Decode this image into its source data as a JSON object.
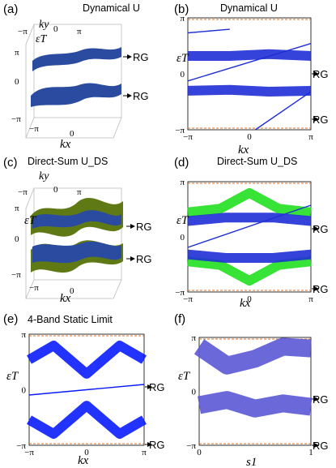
{
  "chart_data": [
    {
      "panel": "(a)",
      "type": "surface3d",
      "title": "Dynamical U",
      "xlabel": "kx",
      "ylabel": "ky",
      "zlabel": "εT",
      "x_ticks": [
        "−π",
        "0"
      ],
      "y_ticks": [
        "−π",
        "0",
        "π"
      ],
      "z_ticks": [
        "π",
        "0",
        "−π"
      ],
      "annotations": [
        "RG",
        "RG"
      ],
      "surface_color": "#2a4ba0"
    },
    {
      "panel": "(b)",
      "type": "line",
      "title": "Dynamical U",
      "xlabel": "kx",
      "ylabel": "εT",
      "x_ticks": [
        "−π",
        "0",
        "π"
      ],
      "y_ticks": [
        "π",
        "0",
        "−π"
      ],
      "annotations": [
        "RG",
        "RG"
      ],
      "series": [
        {
          "values": [
            [
              -3.14,
              1.0
            ],
            [
              -1.0,
              1.0
            ],
            [
              1.0,
              1.1
            ],
            [
              3.14,
              1.0
            ]
          ],
          "color": "#1f2fd6",
          "band": true
        },
        {
          "values": [
            [
              -3.14,
              -0.95
            ],
            [
              -1.0,
              -0.9
            ],
            [
              1.0,
              -1.0
            ],
            [
              3.14,
              -0.95
            ]
          ],
          "color": "#1f2fd6",
          "band": true
        },
        {
          "values": [
            [
              -3.14,
              2.3
            ],
            [
              -1.0,
              2.5
            ]
          ],
          "color": "#1f2fd6"
        },
        {
          "values": [
            [
              -3.14,
              -0.4
            ],
            [
              3.14,
              1.7
            ]
          ],
          "color": "#1f2fd6"
        },
        {
          "values": [
            [
              0.3,
              -3.14
            ],
            [
              3.14,
              -1.0
            ]
          ],
          "color": "#1f2fd6"
        }
      ],
      "ylim": [
        -3.14,
        3.14
      ],
      "xlim": [
        -3.14,
        3.14
      ]
    },
    {
      "panel": "(c)",
      "type": "surface3d",
      "title": "Direct-Sum U_DS",
      "xlabel": "kx",
      "ylabel": "ky",
      "zlabel": "εT",
      "x_ticks": [
        "−π",
        "0"
      ],
      "y_ticks": [
        "−π",
        "0",
        "π"
      ],
      "z_ticks": [
        "π",
        "0",
        "−π"
      ],
      "annotations": [
        "RG",
        "RG"
      ],
      "surface_colors": [
        "#2a4ba0",
        "#5f7a14"
      ]
    },
    {
      "panel": "(d)",
      "type": "line",
      "title": "Direct-Sum U_DS",
      "xlabel": "kx",
      "ylabel": "εT",
      "x_ticks": [
        "−π",
        "0",
        "π"
      ],
      "y_ticks": [
        "π",
        "0",
        "−π"
      ],
      "annotations": [
        "RG",
        "RG"
      ],
      "series": [
        {
          "values": [
            [
              -3.14,
              1.4
            ],
            [
              -1.5,
              1.6
            ],
            [
              0,
              2.5
            ],
            [
              1.5,
              1.6
            ],
            [
              3.14,
              1.4
            ]
          ],
          "color": "#22e022",
          "band": true
        },
        {
          "values": [
            [
              -3.14,
              -1.4
            ],
            [
              -1.5,
              -1.6
            ],
            [
              0,
              -2.5
            ],
            [
              1.5,
              -1.6
            ],
            [
              3.14,
              -1.4
            ]
          ],
          "color": "#22e022",
          "band": true
        },
        {
          "values": [
            [
              -3.14,
              0.9
            ],
            [
              -1.2,
              1.1
            ],
            [
              1.2,
              1.1
            ],
            [
              3.14,
              0.9
            ]
          ],
          "color": "#1f2fd6",
          "band": true
        },
        {
          "values": [
            [
              -3.14,
              -1.0
            ],
            [
              -1.2,
              -1.2
            ],
            [
              1.2,
              -1.2
            ],
            [
              3.14,
              -1.0
            ]
          ],
          "color": "#1f2fd6",
          "band": true
        },
        {
          "values": [
            [
              -3.14,
              -0.6
            ],
            [
              3.14,
              1.8
            ]
          ],
          "color": "#1f2fd6"
        }
      ],
      "ylim": [
        -3.14,
        3.14
      ],
      "xlim": [
        -3.14,
        3.14
      ]
    },
    {
      "panel": "(e)",
      "type": "line",
      "title": "4-Band Static Limit",
      "xlabel": "kx",
      "ylabel": "εT",
      "x_ticks": [
        "−π",
        "0",
        "π"
      ],
      "y_ticks": [
        "π",
        "0",
        "−π"
      ],
      "annotations": [
        "RG",
        "RG"
      ],
      "series": [
        {
          "values": [
            [
              -3.14,
              1.7
            ],
            [
              -1.8,
              2.5
            ],
            [
              0,
              0.9
            ],
            [
              1.8,
              2.5
            ],
            [
              3.14,
              1.7
            ]
          ],
          "color": "#0a1cff",
          "band": true
        },
        {
          "values": [
            [
              -3.14,
              -1.7
            ],
            [
              -1.8,
              -2.5
            ],
            [
              0,
              -0.9
            ],
            [
              1.8,
              -2.5
            ],
            [
              3.14,
              -1.7
            ]
          ],
          "color": "#0a1cff",
          "band": true
        },
        {
          "values": [
            [
              -3.14,
              -0.3
            ],
            [
              0,
              0.0
            ],
            [
              3.14,
              0.3
            ]
          ],
          "color": "#0a1cff"
        }
      ],
      "ylim": [
        -3.14,
        3.14
      ],
      "xlim": [
        -3.14,
        3.14
      ]
    },
    {
      "panel": "(f)",
      "type": "area",
      "xlabel": "s1",
      "ylabel": "εT",
      "x_ticks": [
        "0",
        "1"
      ],
      "y_ticks": [
        "π",
        "0",
        "−π"
      ],
      "annotations": [
        "RG",
        "RG"
      ],
      "series": [
        {
          "values": [
            [
              0,
              2.6
            ],
            [
              0.25,
              1.5
            ],
            [
              0.5,
              1.9
            ],
            [
              0.75,
              2.6
            ],
            [
              1,
              2.5
            ]
          ],
          "color": "#5b58d6",
          "band": true
        },
        {
          "values": [
            [
              0,
              -0.8
            ],
            [
              0.25,
              -0.5
            ],
            [
              0.5,
              -1.0
            ],
            [
              0.75,
              -0.7
            ],
            [
              1,
              -0.9
            ]
          ],
          "color": "#5b58d6",
          "band": true
        }
      ],
      "xlim": [
        0,
        1
      ],
      "ylim": [
        -3.14,
        3.14
      ]
    }
  ]
}
